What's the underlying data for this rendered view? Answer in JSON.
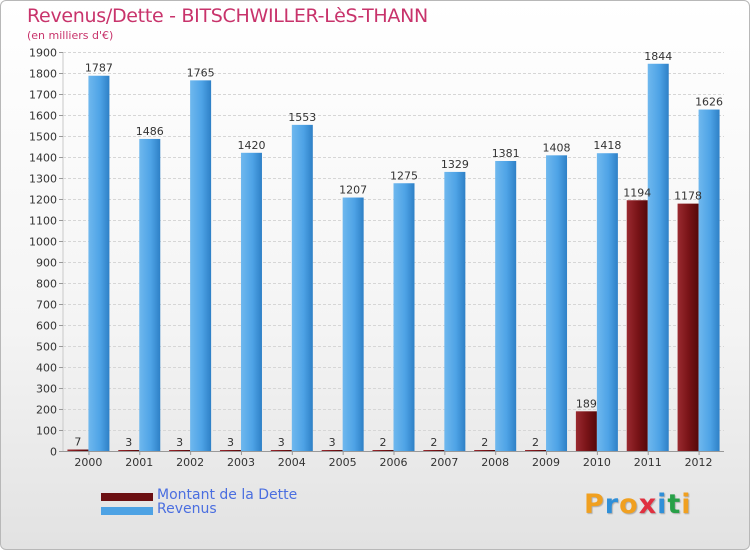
{
  "title": "Revenus/Dette - BITSCHWILLER-LèS-THANN",
  "subtitle": "(en milliers d'€)",
  "chart_data": {
    "type": "bar",
    "title": "Revenus/Dette - BITSCHWILLER-LèS-THANN",
    "subtitle": "(en milliers d'€)",
    "categories": [
      "2000",
      "2001",
      "2002",
      "2003",
      "2004",
      "2005",
      "2006",
      "2007",
      "2008",
      "2009",
      "2010",
      "2011",
      "2012"
    ],
    "series": [
      {
        "name": "Montant de la Dette",
        "color": "#7a1418",
        "values": [
          7,
          3,
          3,
          3,
          3,
          3,
          2,
          2,
          2,
          2,
          189,
          1194,
          1178
        ]
      },
      {
        "name": "Revenus",
        "color": "#4da2e4",
        "values": [
          1787,
          1486,
          1765,
          1420,
          1553,
          1207,
          1275,
          1329,
          1381,
          1408,
          1418,
          1844,
          1626
        ]
      }
    ],
    "yticks": [
      0,
      100,
      200,
      300,
      400,
      500,
      600,
      700,
      800,
      900,
      1000,
      1100,
      1200,
      1300,
      1400,
      1500,
      1600,
      1700,
      1800,
      1900
    ],
    "ylim": [
      0,
      1900
    ],
    "grid": true,
    "legend_position": "bottom-left"
  },
  "legend": [
    {
      "label": "Montant de la Dette",
      "color": "#6b0f12"
    },
    {
      "label": "Revenus",
      "color": "#4da2e4"
    }
  ],
  "logo": {
    "text": "Proxiti",
    "letters": [
      "P",
      "r",
      "o",
      "x",
      "i",
      "t",
      "i"
    ],
    "colors": [
      "#f0a020",
      "#2f8fd8",
      "#f0a020",
      "#e03040",
      "#2f8fd8",
      "#28a048",
      "#f0a020"
    ]
  }
}
